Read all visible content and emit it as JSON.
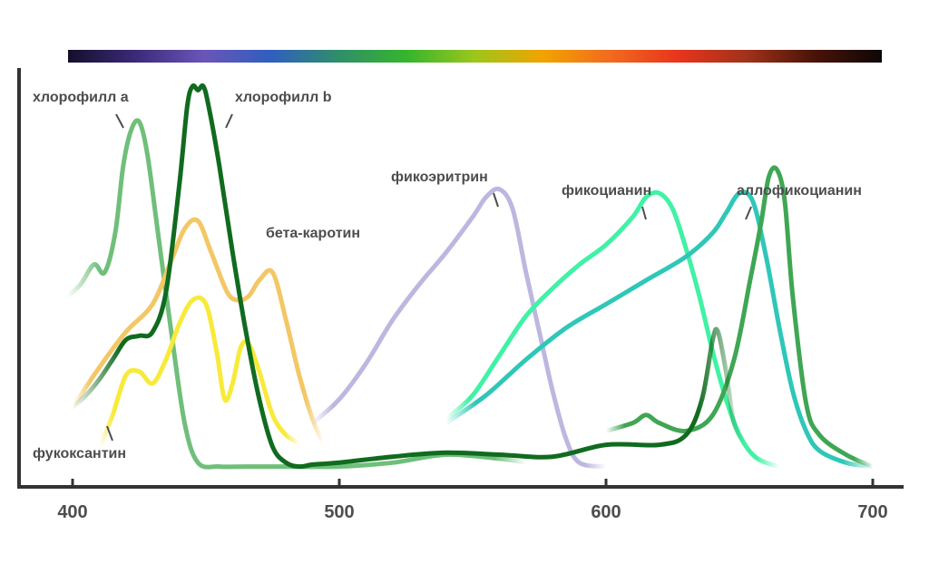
{
  "chart_data": {
    "type": "line",
    "title": "",
    "xlabel": "",
    "ylabel": "",
    "xlim": [
      380,
      710
    ],
    "ylim": [
      0,
      1
    ],
    "x_ticks": [
      400,
      500,
      600,
      700
    ],
    "x_tick_labels": [
      "400",
      "500",
      "600",
      "700"
    ],
    "grid": false,
    "legend": "inline labels",
    "spectrum_bar": true,
    "spectrum_colors": [
      "#150f2b",
      "#3b2a7a",
      "#6a55b8",
      "#2f5fbf",
      "#2f8f6a",
      "#36b52c",
      "#9cc61c",
      "#f2a300",
      "#f26a1f",
      "#e8341c",
      "#a1321a",
      "#4a1308",
      "#0d0707"
    ],
    "series": [
      {
        "name": "хлорофилл a",
        "color": "#6fbf7a",
        "x": [
          398,
          403,
          408,
          412,
          416,
          419,
          422,
          425,
          428,
          432,
          437,
          442,
          447,
          455,
          465,
          480,
          500,
          520,
          540,
          560,
          570
        ],
        "y": [
          0.44,
          0.47,
          0.52,
          0.5,
          0.6,
          0.77,
          0.86,
          0.88,
          0.8,
          0.6,
          0.35,
          0.12,
          0.02,
          0.01,
          0.01,
          0.01,
          0.01,
          0.02,
          0.04,
          0.03,
          0.02
        ]
      },
      {
        "name": "хлорофилл b",
        "color": "#106b1f",
        "x": [
          400,
          405,
          410,
          415,
          420,
          425,
          430,
          435,
          440,
          443,
          445,
          447,
          449,
          451,
          455,
          460,
          465,
          470,
          475,
          480,
          485,
          490,
          500,
          520,
          540,
          560,
          580,
          600,
          620,
          630,
          636,
          640,
          642,
          645,
          648,
          652
        ],
        "y": [
          0.16,
          0.19,
          0.23,
          0.28,
          0.33,
          0.34,
          0.35,
          0.45,
          0.72,
          0.92,
          0.97,
          0.96,
          0.97,
          0.92,
          0.77,
          0.55,
          0.35,
          0.18,
          0.06,
          0.02,
          0.01,
          0.015,
          0.02,
          0.035,
          0.045,
          0.04,
          0.035,
          0.065,
          0.065,
          0.09,
          0.18,
          0.33,
          0.35,
          0.25,
          0.12,
          0.07
        ]
      },
      {
        "name": "бета-каротин",
        "color": "#f3c766",
        "x": [
          400,
          410,
          420,
          430,
          437,
          442,
          447,
          452,
          458,
          462,
          466,
          470,
          475,
          480,
          485,
          490,
          494
        ],
        "y": [
          0.16,
          0.26,
          0.35,
          0.42,
          0.53,
          0.61,
          0.63,
          0.55,
          0.45,
          0.43,
          0.44,
          0.48,
          0.5,
          0.38,
          0.24,
          0.13,
          0.07
        ]
      },
      {
        "name": "фукоксантин",
        "color": "#f8ea3a",
        "x": [
          410,
          415,
          420,
          425,
          430,
          435,
          440,
          445,
          450,
          454,
          457,
          460,
          463,
          466,
          470,
          475,
          480,
          485
        ],
        "y": [
          0.06,
          0.14,
          0.24,
          0.25,
          0.22,
          0.28,
          0.37,
          0.43,
          0.42,
          0.3,
          0.18,
          0.22,
          0.31,
          0.32,
          0.25,
          0.14,
          0.09,
          0.07
        ]
      },
      {
        "name": "фикоэритрин",
        "color": "#bdb7e0",
        "x": [
          490,
          500,
          510,
          520,
          530,
          540,
          550,
          555,
          560,
          565,
          570,
          575,
          580,
          585,
          590,
          600
        ],
        "y": [
          0.12,
          0.18,
          0.27,
          0.38,
          0.47,
          0.55,
          0.64,
          0.69,
          0.71,
          0.66,
          0.5,
          0.35,
          0.2,
          0.08,
          0.02,
          0.01
        ]
      },
      {
        "name": "фикоцианин",
        "color": "#40f2a4",
        "x": [
          540,
          550,
          560,
          570,
          580,
          590,
          600,
          610,
          615,
          620,
          625,
          630,
          635,
          640,
          645,
          650,
          655,
          660,
          665
        ],
        "y": [
          0.13,
          0.19,
          0.29,
          0.39,
          0.46,
          0.52,
          0.57,
          0.64,
          0.69,
          0.7,
          0.66,
          0.56,
          0.44,
          0.3,
          0.18,
          0.09,
          0.04,
          0.02,
          0.01
        ]
      },
      {
        "name": "аллофикоцианин",
        "color": "#2fc7b7",
        "x": [
          540,
          555,
          570,
          585,
          600,
          615,
          630,
          640,
          645,
          650,
          655,
          660,
          665,
          670,
          675,
          680,
          690,
          700
        ],
        "y": [
          0.12,
          0.19,
          0.28,
          0.36,
          0.42,
          0.48,
          0.54,
          0.6,
          0.65,
          0.7,
          0.68,
          0.54,
          0.36,
          0.2,
          0.1,
          0.05,
          0.02,
          0.01
        ]
      },
      {
        "name": "",
        "color": "#3fa653",
        "x": [
          600,
          610,
          615,
          620,
          630,
          640,
          648,
          654,
          658,
          661,
          664,
          667,
          670,
          675,
          680,
          690,
          700
        ],
        "y": [
          0.1,
          0.12,
          0.14,
          0.12,
          0.1,
          0.14,
          0.28,
          0.48,
          0.62,
          0.74,
          0.76,
          0.68,
          0.44,
          0.17,
          0.09,
          0.04,
          0.01
        ]
      }
    ]
  }
}
